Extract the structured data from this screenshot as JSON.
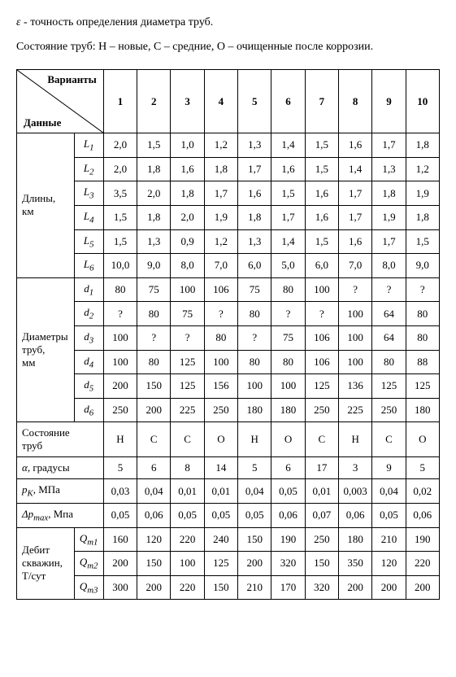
{
  "intro": {
    "epsilon": "ε",
    "epsilon_text": " - точность определения диаметра труб.",
    "condition_text": "Состояние труб: Н – новые, С – средние, О – очищенные после коррозии."
  },
  "header": {
    "variants": "Варианты",
    "data": "Данные",
    "nums": [
      "1",
      "2",
      "3",
      "4",
      "5",
      "6",
      "7",
      "8",
      "9",
      "10"
    ]
  },
  "blocks": [
    {
      "label_lines": [
        "Длины,",
        "км"
      ],
      "rows": [
        {
          "sym": "L",
          "sub": "1",
          "vals": [
            "2,0",
            "1,5",
            "1,0",
            "1,2",
            "1,3",
            "1,4",
            "1,5",
            "1,6",
            "1,7",
            "1,8"
          ]
        },
        {
          "sym": "L",
          "sub": "2",
          "vals": [
            "2,0",
            "1,8",
            "1,6",
            "1,8",
            "1,7",
            "1,6",
            "1,5",
            "1,4",
            "1,3",
            "1,2"
          ]
        },
        {
          "sym": "L",
          "sub": "3",
          "vals": [
            "3,5",
            "2,0",
            "1,8",
            "1,7",
            "1,6",
            "1,5",
            "1,6",
            "1,7",
            "1,8",
            "1,9"
          ]
        },
        {
          "sym": "L",
          "sub": "4",
          "vals": [
            "1,5",
            "1,8",
            "2,0",
            "1,9",
            "1,8",
            "1,7",
            "1,6",
            "1,7",
            "1,9",
            "1,8"
          ]
        },
        {
          "sym": "L",
          "sub": "5",
          "vals": [
            "1,5",
            "1,3",
            "0,9",
            "1,2",
            "1,3",
            "1,4",
            "1,5",
            "1,6",
            "1,7",
            "1,5"
          ]
        },
        {
          "sym": "L",
          "sub": "6",
          "vals": [
            "10,0",
            "9,0",
            "8,0",
            "7,0",
            "6,0",
            "5,0",
            "6,0",
            "7,0",
            "8,0",
            "9,0"
          ]
        }
      ]
    },
    {
      "label_lines": [
        "Диаметры",
        "труб,",
        "мм"
      ],
      "rows": [
        {
          "sym": "d",
          "sub": "1",
          "vals": [
            "80",
            "75",
            "100",
            "106",
            "75",
            "80",
            "100",
            "?",
            "?",
            "?"
          ]
        },
        {
          "sym": "d",
          "sub": "2",
          "vals": [
            "?",
            "80",
            "75",
            "?",
            "80",
            "?",
            "?",
            "100",
            "64",
            "80"
          ]
        },
        {
          "sym": "d",
          "sub": "3",
          "vals": [
            "100",
            "?",
            "?",
            "80",
            "?",
            "75",
            "106",
            "100",
            "64",
            "80"
          ]
        },
        {
          "sym": "d",
          "sub": "4",
          "vals": [
            "100",
            "80",
            "125",
            "100",
            "80",
            "80",
            "106",
            "100",
            "80",
            "88"
          ]
        },
        {
          "sym": "d",
          "sub": "5",
          "vals": [
            "200",
            "150",
            "125",
            "156",
            "100",
            "100",
            "125",
            "136",
            "125",
            "125"
          ]
        },
        {
          "sym": "d",
          "sub": "6",
          "vals": [
            "250",
            "200",
            "225",
            "250",
            "180",
            "180",
            "250",
            "225",
            "250",
            "180"
          ]
        }
      ]
    }
  ],
  "single_rows": [
    {
      "label_lines": [
        "Состояние",
        "труб"
      ],
      "colspan": 2,
      "vals": [
        "Н",
        "С",
        "С",
        "О",
        "Н",
        "О",
        "С",
        "Н",
        "С",
        "О"
      ]
    },
    {
      "label": "α, градусы",
      "colspan": 2,
      "alpha": true,
      "vals": [
        "5",
        "6",
        "8",
        "14",
        "5",
        "6",
        "17",
        "3",
        "9",
        "5"
      ]
    },
    {
      "label": "p",
      "label_sub": "K",
      "label_after": ", МПа",
      "colspan": 2,
      "italic_p": true,
      "vals": [
        "0,03",
        "0,04",
        "0,01",
        "0,01",
        "0,04",
        "0,05",
        "0,01",
        "0,003",
        "0,04",
        "0,02"
      ]
    },
    {
      "label": "Δp",
      "label_sub": "max",
      "label_after": ", Мпа",
      "colspan": 2,
      "italic_p": true,
      "vals": [
        "0,05",
        "0,06",
        "0,05",
        "0,05",
        "0,05",
        "0,06",
        "0,07",
        "0,06",
        "0,05",
        "0,06"
      ]
    }
  ],
  "debit_block": {
    "label_lines": [
      "Дебит",
      "скважин,",
      "Т/сут"
    ],
    "rows": [
      {
        "sym": "Q",
        "sub": "m1",
        "vals": [
          "160",
          "120",
          "220",
          "240",
          "150",
          "190",
          "250",
          "180",
          "210",
          "190"
        ]
      },
      {
        "sym": "Q",
        "sub": "m2",
        "vals": [
          "200",
          "150",
          "100",
          "125",
          "200",
          "320",
          "150",
          "350",
          "120",
          "220"
        ]
      },
      {
        "sym": "Q",
        "sub": "m3",
        "vals": [
          "300",
          "200",
          "220",
          "150",
          "210",
          "170",
          "320",
          "200",
          "200",
          "200"
        ]
      }
    ]
  },
  "col_widths": {
    "label": "70",
    "sym": "36",
    "data": "41"
  }
}
